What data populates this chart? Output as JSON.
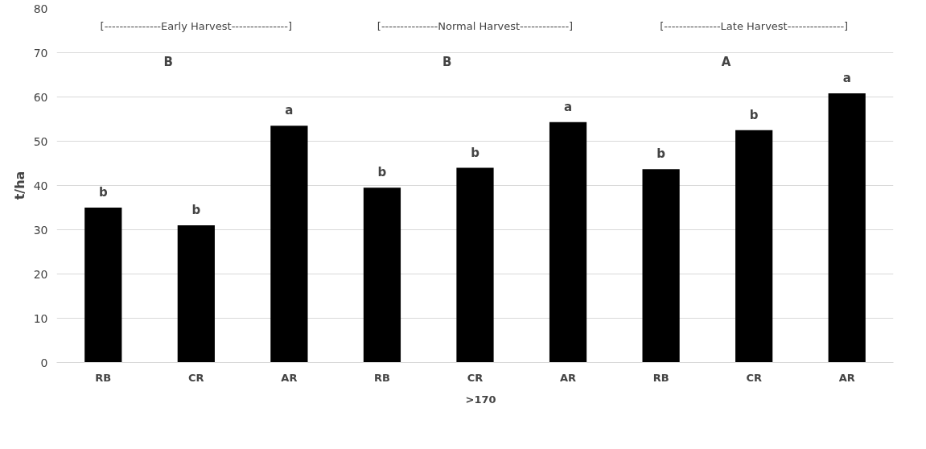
{
  "chart_data": {
    "type": "bar",
    "ylabel": "t/ha",
    "categories": [
      "RB",
      "CR",
      "AR",
      "RB",
      "CR",
      "AR",
      "RB",
      "CR",
      "AR"
    ],
    "series": [
      {
        "name": ">170",
        "color": "#000000",
        "values": [
          35,
          31,
          53.5,
          39.5,
          44,
          54.3,
          43.7,
          52.5,
          60.8
        ],
        "value_labels": [
          "b",
          "b",
          "a",
          "b",
          "b",
          "a",
          "b",
          "b",
          "a"
        ]
      }
    ],
    "ylim": [
      0,
      80
    ],
    "yticks": [
      0,
      10,
      20,
      30,
      40,
      50,
      60,
      70,
      80
    ],
    "grid": "y",
    "legend": "bottom",
    "annotations": [
      "[---------------Early Harvest---------------]",
      "[---------------Normal Harvest-------------]",
      "[---------------Late Harvest---------------]",
      "B",
      "B",
      "A"
    ]
  }
}
